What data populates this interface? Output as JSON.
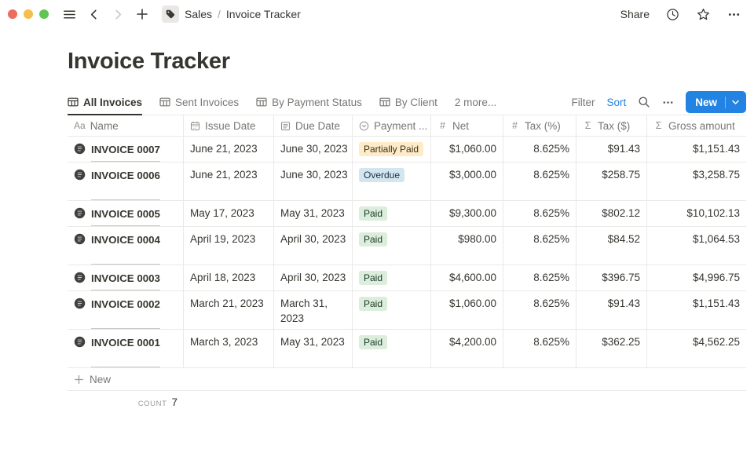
{
  "window": {
    "breadcrumb_parent": "Sales",
    "breadcrumb_separator": "/",
    "breadcrumb_current": "Invoice Tracker",
    "share_label": "Share"
  },
  "page": {
    "title": "Invoice Tracker"
  },
  "view_tabs": [
    {
      "label": "All Invoices",
      "active": true,
      "is_overflow": false
    },
    {
      "label": "Sent Invoices",
      "active": false,
      "is_overflow": false
    },
    {
      "label": "By Payment Status",
      "active": false,
      "is_overflow": false
    },
    {
      "label": "By Client",
      "active": false,
      "is_overflow": false
    },
    {
      "label": "2 more...",
      "active": false,
      "is_overflow": true
    }
  ],
  "toolbar": {
    "filter_label": "Filter",
    "sort_label": "Sort",
    "new_label": "New"
  },
  "table": {
    "columns": [
      {
        "label": "Name",
        "icon": "text-icon"
      },
      {
        "label": "Issue Date",
        "icon": "calendar-icon"
      },
      {
        "label": "Due Date",
        "icon": "calendar-lines-icon"
      },
      {
        "label": "Payment ...",
        "icon": "select-icon"
      },
      {
        "label": "Net",
        "icon": "number-icon"
      },
      {
        "label": "Tax (%)",
        "icon": "number-icon"
      },
      {
        "label": "Tax ($)",
        "icon": "formula-icon"
      },
      {
        "label": "Gross amount",
        "icon": "formula-icon"
      }
    ],
    "rows": [
      {
        "name": "INVOICE 0007",
        "issue_date": "June 21, 2023",
        "due_date": "June 30, 2023",
        "payment_status": "Partially Paid",
        "status_color": "yellow",
        "net": "$1,060.00",
        "tax_pct": "8.625%",
        "tax_amt": "$91.43",
        "gross": "$1,151.43",
        "tall": false
      },
      {
        "name": "INVOICE 0006",
        "issue_date": "June 21, 2023",
        "due_date": "June 30, 2023",
        "payment_status": "Overdue",
        "status_color": "blue",
        "net": "$3,000.00",
        "tax_pct": "8.625%",
        "tax_amt": "$258.75",
        "gross": "$3,258.75",
        "tall": true
      },
      {
        "name": "INVOICE 0005",
        "issue_date": "May 17, 2023",
        "due_date": "May 31, 2023",
        "payment_status": "Paid",
        "status_color": "green",
        "net": "$9,300.00",
        "tax_pct": "8.625%",
        "tax_amt": "$802.12",
        "gross": "$10,102.13",
        "tall": false
      },
      {
        "name": "INVOICE 0004",
        "issue_date": "April 19, 2023",
        "due_date": "April 30, 2023",
        "payment_status": "Paid",
        "status_color": "green",
        "net": "$980.00",
        "tax_pct": "8.625%",
        "tax_amt": "$84.52",
        "gross": "$1,064.53",
        "tall": true
      },
      {
        "name": "INVOICE 0003",
        "issue_date": "April 18, 2023",
        "due_date": "April 30, 2023",
        "payment_status": "Paid",
        "status_color": "green",
        "net": "$4,600.00",
        "tax_pct": "8.625%",
        "tax_amt": "$396.75",
        "gross": "$4,996.75",
        "tall": false
      },
      {
        "name": "INVOICE 0002",
        "issue_date": "March 21, 2023",
        "due_date": "March 31, 2023",
        "payment_status": "Paid",
        "status_color": "green",
        "net": "$1,060.00",
        "tax_pct": "8.625%",
        "tax_amt": "$91.43",
        "gross": "$1,151.43",
        "tall": true
      },
      {
        "name": "INVOICE 0001",
        "issue_date": "March 3, 2023",
        "due_date": "May 31, 2023",
        "payment_status": "Paid",
        "status_color": "green",
        "net": "$4,200.00",
        "tax_pct": "8.625%",
        "tax_amt": "$362.25",
        "gross": "$4,562.25",
        "tall": true
      }
    ],
    "new_row_label": "New",
    "footer": {
      "count_label": "COUNT",
      "count_value": "7"
    }
  },
  "colors": {
    "accent_blue": "#2383e2",
    "status_yellow_bg": "#fdecc8",
    "status_yellow_text": "#402c1b",
    "status_blue_bg": "#d3e5ef",
    "status_blue_text": "#183347",
    "status_green_bg": "#dbeddb",
    "status_green_text": "#1c3829"
  }
}
